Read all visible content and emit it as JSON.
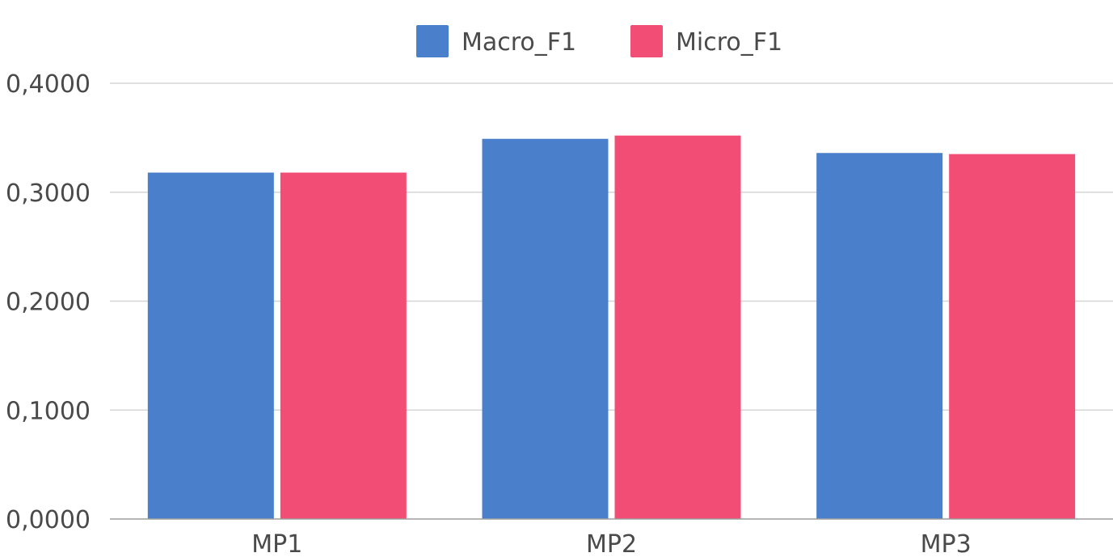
{
  "chart_data": {
    "type": "bar",
    "categories": [
      "MP1",
      "MP2",
      "MP3"
    ],
    "series": [
      {
        "name": "Macro_F1",
        "values": [
          0.318,
          0.349,
          0.336
        ],
        "color": "#4a80cb"
      },
      {
        "name": "Micro_F1",
        "values": [
          0.318,
          0.352,
          0.335
        ],
        "color": "#f24e75"
      }
    ],
    "ylim": [
      0,
      0.4
    ],
    "yticks": [
      "0,0000",
      "0,1000",
      "0,2000",
      "0,3000",
      "0,4000"
    ],
    "ytick_values": [
      0,
      0.1,
      0.2,
      0.3,
      0.4
    ],
    "grid": true,
    "legend": "top-center",
    "title": "",
    "xlabel": "",
    "ylabel": ""
  }
}
